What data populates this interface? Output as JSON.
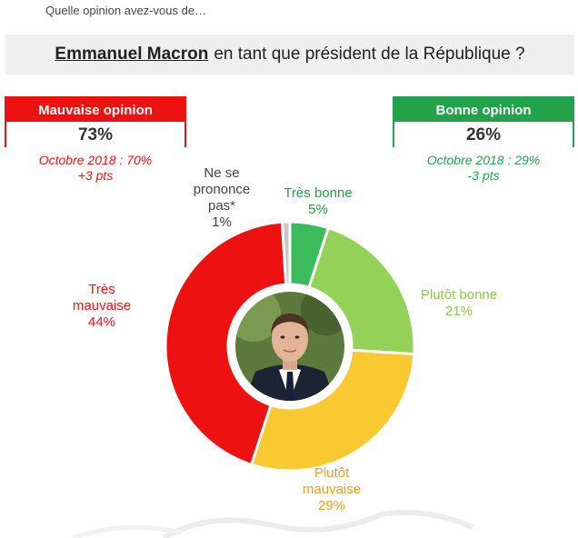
{
  "header": {
    "question": "Quelle opinion avez-vous de…",
    "title_name": "Emmanuel Macron",
    "title_rest": "en tant que président de la République ?"
  },
  "bad_box": {
    "label": "Mauvaise opinion",
    "value": "73%",
    "trend_line1": "Octobre 2018 : 70%",
    "trend_line2": "+3 pts"
  },
  "good_box": {
    "label": "Bonne opinion",
    "value": "26%",
    "trend_line1": "Octobre 2018 : 29%",
    "trend_line2": "-3 pts"
  },
  "colors": {
    "tres_bonne": "#3cbb5c",
    "plutot_bonne": "#93d159",
    "plutot_mauvaise": "#f8c930",
    "tres_mauvaise": "#ee1111",
    "nsp": "#c8c8c8",
    "bad_accent": "#ee1111",
    "good_accent": "#22a24a"
  },
  "chart_data": {
    "type": "pie",
    "donut": true,
    "center_image": "portrait-photo",
    "categories": [
      "Très bonne",
      "Plutôt bonne",
      "Plutôt mauvaise",
      "Très mauvaise",
      "Ne se prononce pas*"
    ],
    "values": [
      5,
      21,
      29,
      44,
      1
    ],
    "value_labels": [
      "5%",
      "21%",
      "29%",
      "44%",
      "1%"
    ],
    "label_lines": [
      [
        "Très bonne",
        "5%"
      ],
      [
        "Plutôt bonne",
        "21%"
      ],
      [
        "Plutôt",
        "mauvaise",
        "29%"
      ],
      [
        "Très",
        "mauvaise",
        "44%"
      ],
      [
        "Ne se",
        "prononce",
        "pas*",
        "1%"
      ]
    ],
    "label_colors": [
      "#2a9a48",
      "#8cc74c",
      "#e8a21a",
      "#ee1111",
      "#444444"
    ]
  }
}
